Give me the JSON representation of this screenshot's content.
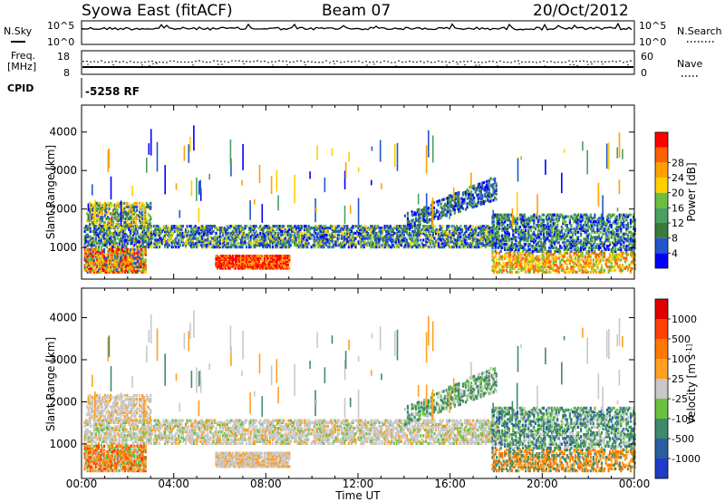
{
  "header": {
    "station": "Syowa East (fitACF)",
    "beam": "Beam 07",
    "date": "20/Oct/2012"
  },
  "panels": {
    "nsky": {
      "label": "N.Sky",
      "top_tick": "10^5",
      "bottom_tick": "10^0",
      "right_label": "N.Search",
      "right_top": "10^5",
      "right_bottom": "10^0"
    },
    "freq": {
      "label_line1": "Freq.",
      "label_line2": "[MHz]",
      "top_tick": "18",
      "bottom_tick": "8",
      "right_label": "Nave",
      "right_top": "60",
      "right_bottom": "0"
    },
    "cpid": {
      "label": "CPID",
      "value": "-5258 RF"
    }
  },
  "colors": {
    "power": [
      "#0000ff",
      "#2255cc",
      "#3a7a3a",
      "#4aa060",
      "#6abf40",
      "#ffd000",
      "#ffa000",
      "#ff6000",
      "#ff0000"
    ],
    "velocity": [
      "#1e3cc8",
      "#2a5ea0",
      "#3f8a6a",
      "#6cc040",
      "#c8c8c8",
      "#ffa020",
      "#ff7800",
      "#ff4000",
      "#e00000"
    ]
  },
  "chart_data": [
    {
      "type": "heatmap",
      "title": "Power",
      "xlabel": "Time UT",
      "ylabel": "Slant Range [km]",
      "xlim": [
        "00:00",
        "00:00"
      ],
      "ylim": [
        180,
        4700
      ],
      "x_ticks": [
        "00:00",
        "04:00",
        "08:00",
        "12:00",
        "16:00",
        "20:00",
        "00:00"
      ],
      "y_ticks": [
        "1000",
        "2000",
        "3000",
        "4000"
      ],
      "colorbar": {
        "label": "Power [dB]",
        "ticks": [
          "4",
          "8",
          "12",
          "16",
          "20",
          "24",
          "28"
        ]
      }
    },
    {
      "type": "heatmap",
      "title": "Velocity",
      "xlabel": "Time UT",
      "ylabel": "Slant Range [km]",
      "xlim": [
        "00:00",
        "00:00"
      ],
      "ylim": [
        180,
        4700
      ],
      "x_ticks": [
        "00:00",
        "04:00",
        "08:00",
        "12:00",
        "16:00",
        "20:00",
        "00:00"
      ],
      "y_ticks": [
        "1000",
        "2000",
        "3000",
        "4000"
      ],
      "colorbar": {
        "label": "Velocity [m s^-1]",
        "ticks": [
          "1000",
          "500",
          "100",
          "25",
          "-25",
          "-100",
          "-500",
          "-1000"
        ]
      }
    }
  ]
}
